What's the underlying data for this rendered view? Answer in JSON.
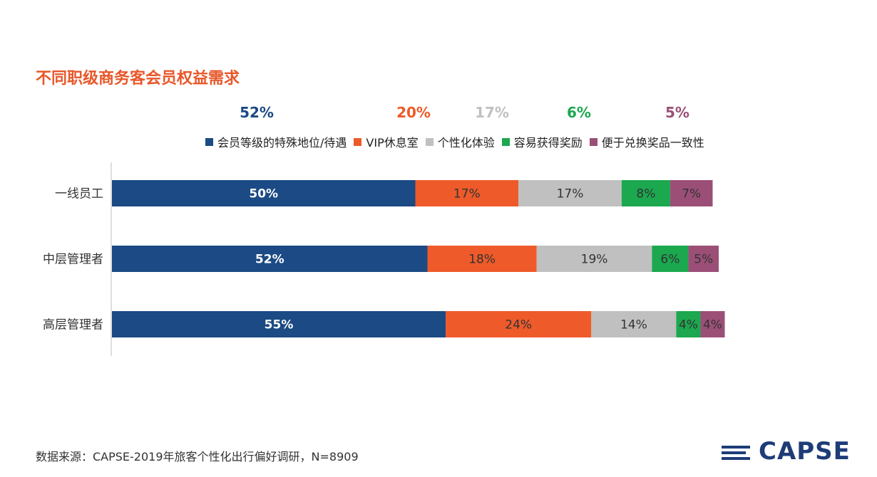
{
  "title": "不同职级商务客会员权益需求",
  "source": "数据来源：CAPSE-2019年旅客个性化出行偏好调研，N=8909",
  "logo": "CAPSE",
  "chart_data": {
    "type": "bar",
    "orientation": "horizontal",
    "stacked": true,
    "categories": [
      "一线员工",
      "中层管理者",
      "高层管理者"
    ],
    "series": [
      {
        "name": "会员等级的特殊地位/待遇",
        "values": [
          50,
          52,
          55
        ],
        "labels": [
          "50%",
          "52%",
          "55%"
        ],
        "color": "#1b4a84",
        "total": "52%",
        "total_color": "#1b4a84"
      },
      {
        "name": "VIP休息室",
        "values": [
          17,
          18,
          24
        ],
        "labels": [
          "17%",
          "18%",
          "24%"
        ],
        "color": "#ee5a2a",
        "total": "20%",
        "total_color": "#ee5a2a"
      },
      {
        "name": "个性化体验",
        "values": [
          17,
          19,
          14
        ],
        "labels": [
          "17%",
          "19%",
          "14%"
        ],
        "color": "#c0c0c0",
        "total": "17%",
        "total_color": "#c0c0c0"
      },
      {
        "name": "容易获得奖励",
        "values": [
          8,
          6,
          4
        ],
        "labels": [
          "8%",
          "6%",
          "4%"
        ],
        "color": "#1ba84f",
        "total": "6%",
        "total_color": "#1ba84f"
      },
      {
        "name": "便于兑换奖品一致性",
        "values": [
          7,
          5,
          4
        ],
        "labels": [
          "7%",
          "5%",
          "4%"
        ],
        "color": "#9b4f77",
        "total": "5%",
        "total_color": "#9b4f77"
      }
    ],
    "xlim": [
      0,
      100
    ],
    "grid": false,
    "legend": "top"
  }
}
